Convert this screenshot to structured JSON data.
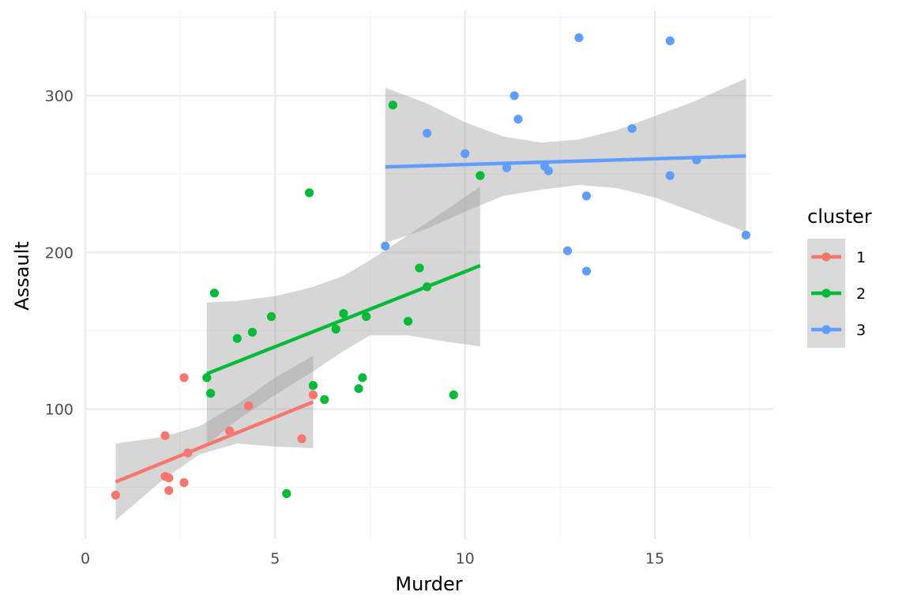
{
  "chart_data": {
    "type": "scatter",
    "xlabel": "Murder",
    "ylabel": "Assault",
    "xlim": [
      0,
      18.1
    ],
    "ylim": [
      17,
      354
    ],
    "x_ticks": [
      0,
      5,
      10,
      15
    ],
    "y_ticks": [
      100,
      200,
      300
    ],
    "x_minor": [
      2.5,
      7.5,
      12.5,
      17.5
    ],
    "y_minor": [
      50,
      150,
      250,
      350
    ],
    "grid": true,
    "legend": {
      "title": "cluster",
      "position": "right"
    },
    "series": [
      {
        "name": "1",
        "color": "#F8766D",
        "points": [
          [
            0.8,
            45
          ],
          [
            2.1,
            57
          ],
          [
            2.2,
            48
          ],
          [
            2.2,
            56
          ],
          [
            2.1,
            83
          ],
          [
            2.6,
            53
          ],
          [
            2.6,
            120
          ],
          [
            2.7,
            72
          ],
          [
            3.8,
            86
          ],
          [
            4.3,
            102
          ],
          [
            5.7,
            81
          ],
          [
            6.0,
            109
          ]
        ],
        "fit": [
          [
            0.8,
            53.5
          ],
          [
            6.0,
            104.5
          ]
        ],
        "band": {
          "x": [
            0.8,
            2.0,
            3.0,
            4.0,
            5.0,
            6.0
          ],
          "upper": [
            78,
            82,
            89,
            103,
            120,
            134
          ],
          "lower": [
            29,
            54,
            71,
            78,
            76,
            75
          ]
        }
      },
      {
        "name": "2",
        "color": "#00BA38",
        "points": [
          [
            3.2,
            120
          ],
          [
            3.3,
            110
          ],
          [
            3.4,
            174
          ],
          [
            4.0,
            145
          ],
          [
            4.4,
            149
          ],
          [
            4.9,
            159
          ],
          [
            5.3,
            46
          ],
          [
            5.9,
            238
          ],
          [
            6.0,
            115
          ],
          [
            6.3,
            106
          ],
          [
            6.6,
            151
          ],
          [
            6.8,
            161
          ],
          [
            7.2,
            113
          ],
          [
            7.3,
            120
          ],
          [
            7.4,
            159
          ],
          [
            8.1,
            294
          ],
          [
            8.5,
            156
          ],
          [
            8.8,
            190
          ],
          [
            9.0,
            178
          ],
          [
            9.7,
            109
          ],
          [
            10.4,
            249
          ]
        ],
        "fit": [
          [
            3.2,
            122.5
          ],
          [
            10.4,
            191.5
          ]
        ],
        "band": {
          "x": [
            3.2,
            4.0,
            5.0,
            6.0,
            6.8,
            7.5,
            8.5,
            9.5,
            10.4
          ],
          "upper": [
            168,
            169,
            172,
            178,
            185,
            195,
            211,
            227,
            242
          ],
          "lower": [
            77,
            93,
            109,
            124,
            137,
            147,
            147,
            143,
            140
          ]
        }
      },
      {
        "name": "3",
        "color": "#619CFF",
        "points": [
          [
            7.9,
            204
          ],
          [
            9.0,
            276
          ],
          [
            10.0,
            263
          ],
          [
            11.1,
            254
          ],
          [
            11.3,
            300
          ],
          [
            11.4,
            285
          ],
          [
            12.1,
            255
          ],
          [
            12.2,
            252
          ],
          [
            12.7,
            201
          ],
          [
            13.0,
            337
          ],
          [
            13.2,
            188
          ],
          [
            13.2,
            236
          ],
          [
            14.4,
            279
          ],
          [
            15.4,
            335
          ],
          [
            15.4,
            249
          ],
          [
            16.1,
            259
          ],
          [
            17.4,
            211
          ]
        ],
        "fit": [
          [
            7.9,
            254.5
          ],
          [
            17.4,
            261.5
          ]
        ],
        "band": {
          "x": [
            7.9,
            9.0,
            10.0,
            11.0,
            12.0,
            13.0,
            14.0,
            15.0,
            16.0,
            17.4
          ],
          "upper": [
            305,
            295,
            283,
            274,
            270,
            272,
            278,
            287,
            296,
            311
          ],
          "lower": [
            206,
            215,
            226,
            236,
            240,
            243,
            241,
            235,
            226,
            213
          ]
        }
      }
    ]
  }
}
